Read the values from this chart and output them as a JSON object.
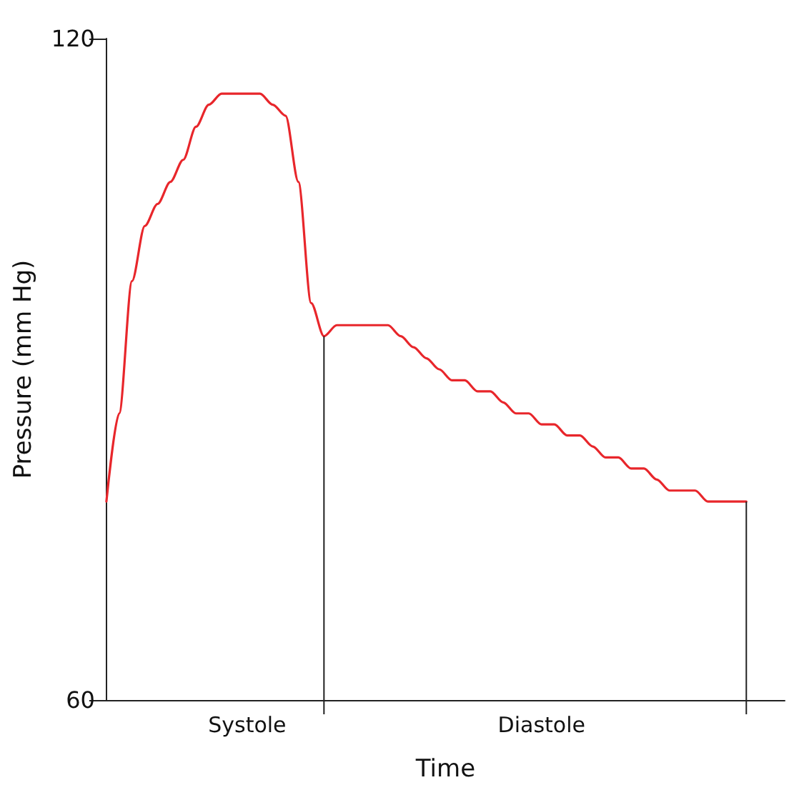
{
  "chart_data": {
    "type": "line",
    "xlabel": "Time",
    "ylabel": "Pressure (mm Hg)",
    "categories": [
      null,
      null,
      null,
      null,
      null,
      null,
      null,
      null,
      null,
      null,
      null,
      "Systole",
      null,
      null,
      null,
      null,
      null,
      null,
      null,
      null,
      null,
      null,
      null,
      null,
      null,
      null,
      null,
      null,
      null,
      null,
      null,
      null,
      null,
      null,
      "Diastole",
      null,
      null,
      null,
      null,
      null,
      null,
      null,
      null,
      null,
      null,
      null,
      null,
      null,
      null,
      null,
      null,
      null,
      null,
      null
    ],
    "series": [
      {
        "color": "#e8262b",
        "values": [
          78,
          86,
          98,
          103,
          105,
          107,
          109,
          112,
          114,
          115,
          115,
          115,
          115,
          114,
          113,
          107,
          96,
          93,
          94,
          94,
          94,
          94,
          94,
          93,
          92,
          91,
          90,
          89,
          89,
          88,
          88,
          87,
          86,
          86,
          85,
          85,
          84,
          84,
          83,
          82,
          82,
          81,
          81,
          80,
          79,
          79,
          79,
          78,
          78,
          78,
          78,
          null,
          null,
          null
        ]
      }
    ],
    "ylim": [
      60,
      120
    ],
    "yticks": [
      60,
      120
    ],
    "grid": false,
    "marker": "none",
    "line_style": "solid"
  }
}
